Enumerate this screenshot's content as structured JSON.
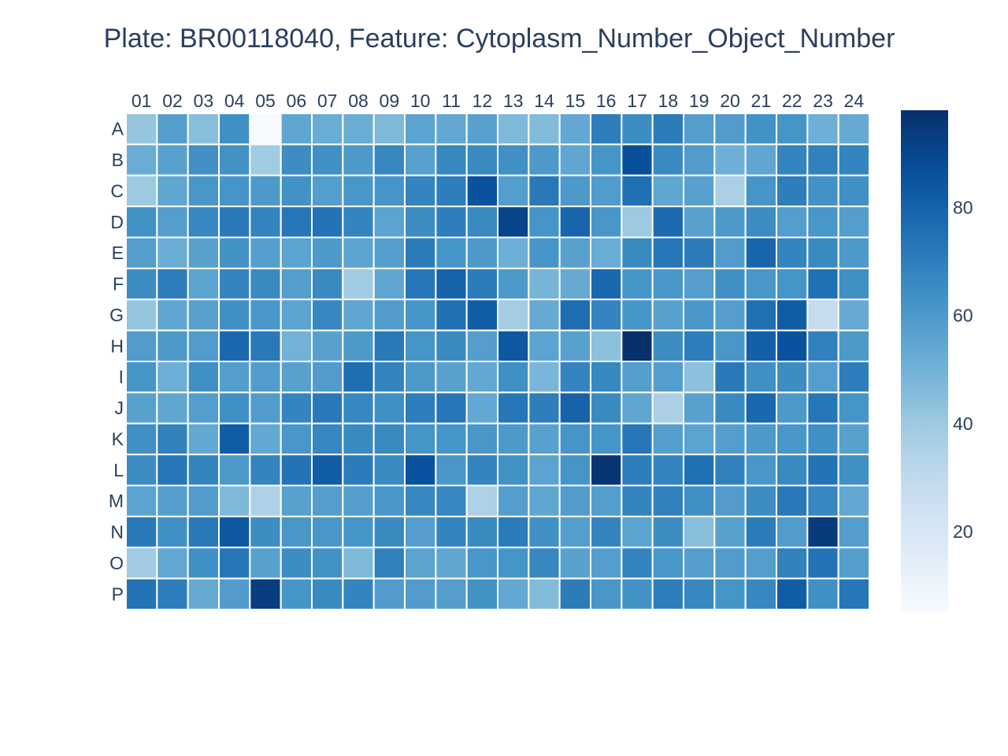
{
  "chart_data": {
    "type": "heatmap",
    "title": "Plate: BR00118040, Feature: Cytoplasm_Number_Object_Number",
    "x_categories": [
      "01",
      "02",
      "03",
      "04",
      "05",
      "06",
      "07",
      "08",
      "09",
      "10",
      "11",
      "12",
      "13",
      "14",
      "15",
      "16",
      "17",
      "18",
      "19",
      "20",
      "21",
      "22",
      "23",
      "24"
    ],
    "y_categories": [
      "A",
      "B",
      "C",
      "D",
      "E",
      "F",
      "G",
      "H",
      "I",
      "J",
      "K",
      "L",
      "M",
      "N",
      "O",
      "P"
    ],
    "z": [
      [
        42,
        58,
        45,
        64,
        5,
        55,
        52,
        52,
        47,
        56,
        54,
        57,
        47,
        46,
        54,
        70,
        65,
        71,
        58,
        59,
        63,
        62,
        51,
        53
      ],
      [
        52,
        57,
        64,
        63,
        39,
        65,
        64,
        60,
        67,
        57,
        67,
        66,
        64,
        60,
        55,
        62,
        87,
        66,
        59,
        51,
        55,
        68,
        69,
        68
      ],
      [
        40,
        55,
        61,
        62,
        60,
        63,
        58,
        61,
        62,
        68,
        70,
        86,
        58,
        72,
        60,
        59,
        75,
        55,
        57,
        36,
        62,
        70,
        63,
        64
      ],
      [
        63,
        58,
        67,
        72,
        68,
        73,
        74,
        68,
        56,
        65,
        70,
        66,
        91,
        62,
        79,
        61,
        40,
        77,
        57,
        60,
        65,
        58,
        61,
        58
      ],
      [
        58,
        52,
        57,
        63,
        58,
        56,
        60,
        56,
        58,
        71,
        62,
        60,
        51,
        62,
        57,
        52,
        66,
        73,
        71,
        59,
        79,
        68,
        66,
        60
      ],
      [
        65,
        70,
        56,
        68,
        66,
        58,
        66,
        39,
        55,
        73,
        80,
        71,
        60,
        49,
        53,
        78,
        62,
        61,
        58,
        64,
        61,
        62,
        75,
        64
      ],
      [
        42,
        55,
        57,
        64,
        61,
        56,
        67,
        55,
        59,
        62,
        75,
        82,
        38,
        53,
        76,
        68,
        62,
        57,
        61,
        58,
        75,
        82,
        28,
        53
      ],
      [
        59,
        60,
        59,
        78,
        72,
        50,
        57,
        60,
        72,
        62,
        66,
        58,
        84,
        56,
        57,
        44,
        98,
        65,
        70,
        61,
        81,
        86,
        69,
        60
      ],
      [
        62,
        51,
        64,
        58,
        59,
        57,
        59,
        76,
        68,
        60,
        57,
        54,
        64,
        48,
        68,
        67,
        58,
        58,
        44,
        72,
        64,
        65,
        58,
        70
      ],
      [
        57,
        55,
        58,
        64,
        59,
        68,
        72,
        67,
        64,
        70,
        73,
        54,
        73,
        70,
        80,
        66,
        55,
        36,
        57,
        66,
        78,
        60,
        73,
        62
      ],
      [
        64,
        69,
        54,
        82,
        54,
        61,
        67,
        66,
        66,
        62,
        62,
        61,
        60,
        57,
        62,
        62,
        73,
        58,
        56,
        58,
        60,
        61,
        64,
        57
      ],
      [
        65,
        73,
        68,
        60,
        68,
        74,
        82,
        71,
        66,
        86,
        61,
        68,
        63,
        56,
        62,
        96,
        70,
        68,
        75,
        69,
        61,
        66,
        74,
        64
      ],
      [
        56,
        58,
        59,
        47,
        35,
        57,
        58,
        58,
        61,
        67,
        67,
        35,
        58,
        55,
        59,
        58,
        68,
        69,
        64,
        59,
        65,
        72,
        67,
        54
      ],
      [
        72,
        64,
        72,
        84,
        65,
        61,
        61,
        62,
        66,
        58,
        68,
        66,
        71,
        64,
        58,
        68,
        56,
        65,
        45,
        57,
        71,
        59,
        94,
        58
      ],
      [
        39,
        54,
        64,
        73,
        57,
        65,
        63,
        47,
        69,
        56,
        55,
        61,
        62,
        67,
        57,
        58,
        68,
        61,
        58,
        59,
        58,
        69,
        74,
        58
      ],
      [
        74,
        70,
        53,
        59,
        93,
        62,
        66,
        68,
        59,
        59,
        58,
        63,
        54,
        46,
        71,
        61,
        63,
        70,
        67,
        62,
        67,
        82,
        64,
        73
      ]
    ],
    "zmin": 5,
    "zmax": 98,
    "colorscale": "Blues",
    "colorscale_stops": [
      "#f7fbff",
      "#deebf7",
      "#c6dbef",
      "#9ecae1",
      "#6baed6",
      "#4292c6",
      "#2171b5",
      "#08519c",
      "#08306b"
    ],
    "colorbar_ticks": [
      "20",
      "40",
      "60",
      "80"
    ],
    "colorbar_tickvals": [
      20,
      40,
      60,
      80
    ],
    "x_axis_side": "top",
    "gap_color": "#ffffff"
  }
}
